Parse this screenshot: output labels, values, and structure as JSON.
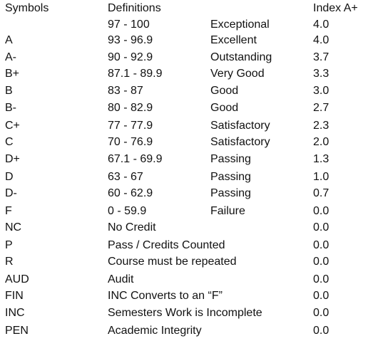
{
  "headers": {
    "symbols": "Symbols",
    "definitions": "Definitions",
    "index": "Index A+"
  },
  "rows": [
    {
      "symbol": "",
      "range": "97 - 100",
      "desc": "Exceptional",
      "index": "4.0"
    },
    {
      "symbol": "A",
      "range": "93 - 96.9",
      "desc": "Excellent",
      "index": "4.0"
    },
    {
      "symbol": "A-",
      "range": "90 - 92.9",
      "desc": "Outstanding",
      "index": "3.7"
    },
    {
      "symbol": "B+",
      "range": "87.1 - 89.9",
      "desc": "Very Good",
      "index": "3.3"
    },
    {
      "symbol": "B",
      "range": "83 - 87",
      "desc": "Good",
      "index": "3.0"
    },
    {
      "symbol": "B-",
      "range": "80 - 82.9",
      "desc": "Good",
      "index": "2.7"
    },
    {
      "symbol": "C+",
      "range": "77 - 77.9",
      "desc": "Satisfactory",
      "index": "2.3"
    },
    {
      "symbol": "C",
      "range": "70 - 76.9",
      "desc": "Satisfactory",
      "index": "2.0"
    },
    {
      "symbol": "D+",
      "range": "67.1 - 69.9",
      "desc": "Passing",
      "index": "1.3"
    },
    {
      "symbol": "D",
      "range": "63 - 67",
      "desc": "Passing",
      "index": "1.0"
    },
    {
      "symbol": "D-",
      "range": "60 - 62.9",
      "desc": "Passing",
      "index": "0.7"
    },
    {
      "symbol": "F",
      "range": "0 - 59.9",
      "desc": "Failure",
      "index": "0.0"
    },
    {
      "symbol": "NC",
      "range": "No Credit",
      "desc": "",
      "index": "0.0"
    },
    {
      "symbol": "P",
      "range": "Pass / Credits Counted",
      "desc": "",
      "index": "0.0"
    },
    {
      "symbol": "R",
      "range": "Course must be repeated",
      "desc": "",
      "index": "0.0"
    },
    {
      "symbol": "AUD",
      "range": "Audit",
      "desc": "",
      "index": "0.0"
    },
    {
      "symbol": "FIN",
      "range": "INC Converts to an “F”",
      "desc": "",
      "index": "0.0"
    },
    {
      "symbol": "INC",
      "range": "Semesters Work is Incomplete",
      "desc": "",
      "index": "0.0"
    },
    {
      "symbol": "PEN",
      "range": "Academic Integrity",
      "desc": "",
      "index": "0.0"
    }
  ]
}
